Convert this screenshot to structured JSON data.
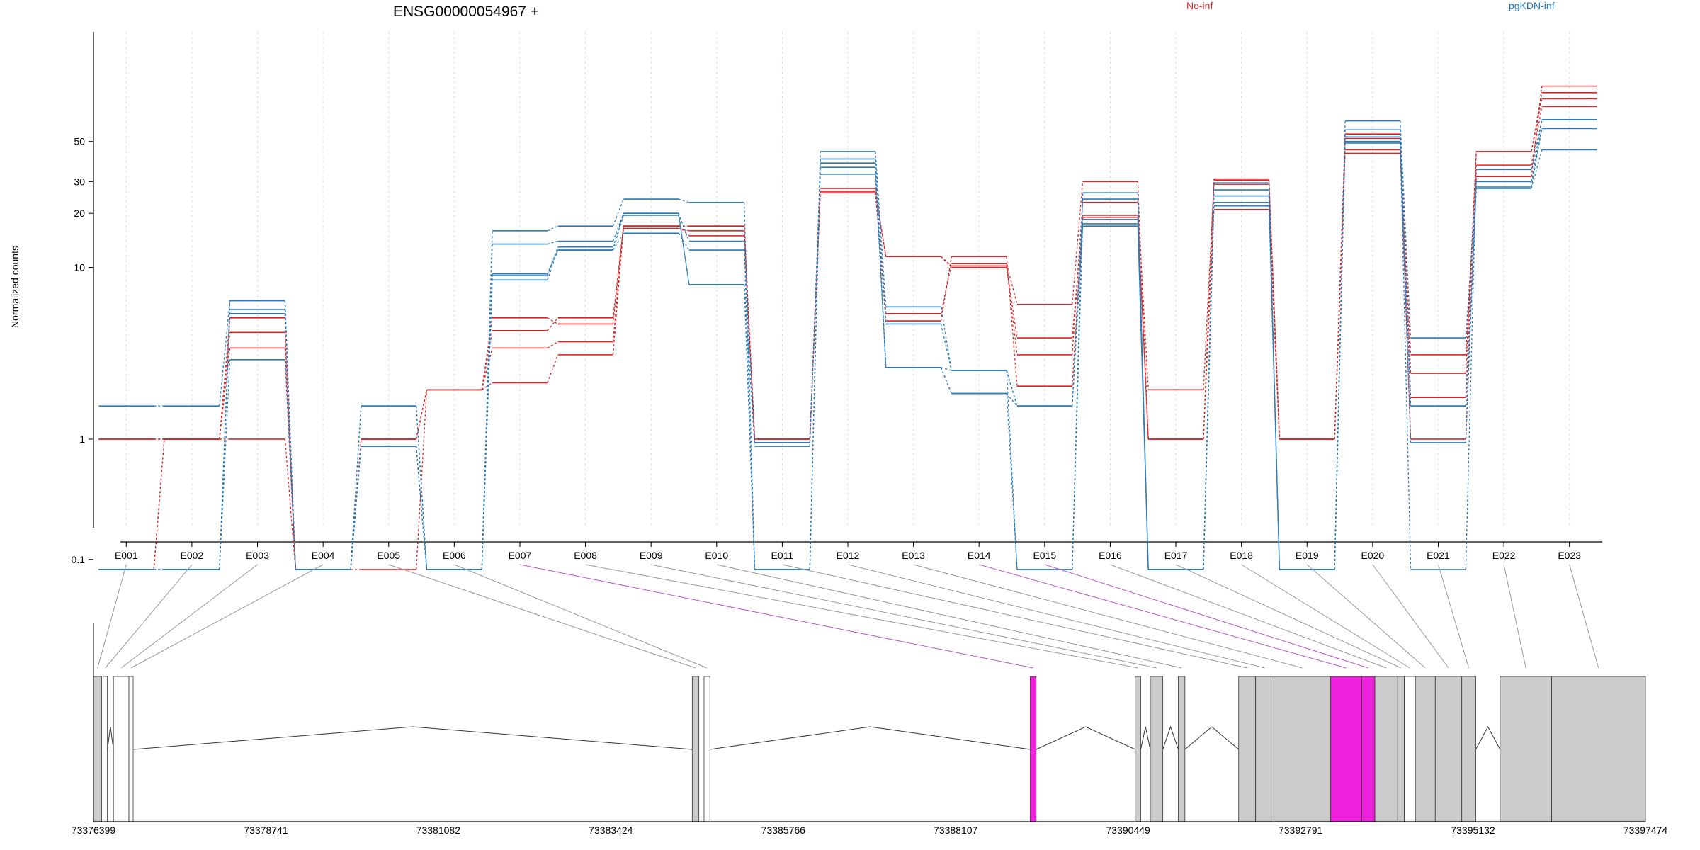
{
  "chart_data": {
    "type": "line",
    "title": "ENSG00000054967 +",
    "ylabel": "Normalized counts",
    "yscale": "log",
    "y_ticks": [
      "0.1",
      "1",
      "10",
      "20",
      "30",
      "50"
    ],
    "grid": "vertical dotted",
    "legend": [
      {
        "label": "No-inf",
        "color": "#d62728"
      },
      {
        "label": "pgKDN-inf",
        "color": "#2c7bb6"
      }
    ],
    "legend_placement": "top-right",
    "categories": [
      "E001",
      "E002",
      "E003",
      "E004",
      "E005",
      "E006",
      "E007",
      "E008",
      "E009",
      "E010",
      "E011",
      "E012",
      "E013",
      "E014",
      "E015",
      "E016",
      "E017",
      "E018",
      "E019",
      "E020",
      "E021",
      "E022",
      "E023"
    ],
    "series": [
      {
        "group": "No-inf",
        "values": [
          1,
          1,
          1,
          0.07,
          0.07,
          2,
          2.2,
          3.2,
          17,
          17,
          1,
          26,
          11.5,
          10.2,
          3.2,
          23,
          2,
          29,
          1,
          43,
          1,
          37,
          78
        ]
      },
      {
        "group": "No-inf",
        "values": [
          1,
          1,
          3.5,
          0.07,
          1,
          2,
          3.5,
          3.8,
          16.5,
          16,
          1,
          26.5,
          11.5,
          10,
          4,
          19,
          1,
          31,
          1,
          45,
          2.5,
          44,
          86
        ]
      },
      {
        "group": "No-inf",
        "values": [
          0.07,
          1,
          4.3,
          0.07,
          1,
          2,
          4.4,
          5.2,
          17,
          15,
          1,
          27.5,
          5,
          11.5,
          2.1,
          19.5,
          1,
          30.5,
          1,
          52,
          1.8,
          44,
          93
        ]
      },
      {
        "group": "No-inf",
        "values": [
          0.07,
          1,
          5.2,
          0.07,
          1,
          2,
          5.2,
          4.8,
          17,
          17,
          0.95,
          26,
          5.5,
          10.5,
          6.2,
          30,
          1,
          21,
          1,
          55,
          3.2,
          32,
          101
        ]
      },
      {
        "group": "pgKDN-inf",
        "values": [
          1.6,
          1.6,
          6.5,
          0.07,
          1.6,
          0.07,
          16,
          17,
          24,
          23,
          0.07,
          44,
          6,
          2.6,
          1.6,
          24,
          0.07,
          27,
          0.07,
          65,
          4,
          30,
          66
        ]
      },
      {
        "group": "pgKDN-inf",
        "values": [
          0.07,
          0.07,
          6.5,
          0.07,
          0.9,
          0.07,
          13.5,
          14,
          20,
          14,
          0.07,
          40,
          4.8,
          2.6,
          0.07,
          26,
          0.07,
          29.5,
          0.07,
          53,
          0.07,
          35,
          66
        ]
      },
      {
        "group": "pgKDN-inf",
        "values": [
          0.07,
          0.07,
          5.5,
          0.07,
          0.9,
          0.07,
          9,
          13,
          20,
          8,
          0.9,
          36,
          2.7,
          1.9,
          1.6,
          17,
          0.07,
          22,
          0.07,
          49,
          0.95,
          30,
          59
        ]
      },
      {
        "group": "pgKDN-inf",
        "values": [
          0.07,
          0.07,
          3,
          0.07,
          0.9,
          0.07,
          9.2,
          12.5,
          15.5,
          12.5,
          0.95,
          33,
          2.7,
          1.9,
          0.07,
          17.5,
          0.07,
          25,
          0.07,
          58,
          1.6,
          27.5,
          45
        ]
      },
      {
        "group": "pgKDN-inf",
        "values": [
          0.07,
          0.07,
          5.8,
          0.07,
          1.6,
          0.07,
          8.5,
          12.5,
          19.5,
          8,
          0.07,
          38,
          2.7,
          2.6,
          1.6,
          18.5,
          0.07,
          23,
          0.07,
          50,
          1.6,
          28,
          59
        ]
      }
    ],
    "genomic_axis_ticks": [
      "73376399",
      "73378741",
      "73381082",
      "73383424",
      "73385766",
      "73388107",
      "73390449",
      "73392791",
      "73395132",
      "73397474"
    ],
    "genomic_range": [
      73376399,
      73397474
    ],
    "exon_colors": {
      "normal": "#cccccc",
      "highlighted": "#ee22dd",
      "untested": "#ffffff"
    },
    "exons": [
      {
        "id": "E001",
        "start": 73376399,
        "end": 73376510,
        "state": "normal"
      },
      {
        "id": "E002",
        "start": 73376530,
        "end": 73376560,
        "state": "untested"
      },
      {
        "id": "E003",
        "start": 73376670,
        "end": 73376880,
        "state": "untested"
      },
      {
        "id": "E004",
        "start": 73376880,
        "end": 73376885,
        "state": "untested"
      },
      {
        "id": "E005",
        "start": 73384530,
        "end": 73384620,
        "state": "normal"
      },
      {
        "id": "E006",
        "start": 73384690,
        "end": 73384770,
        "state": "untested"
      },
      {
        "id": "E007",
        "start": 73389120,
        "end": 73389200,
        "state": "highlighted"
      },
      {
        "id": "E008",
        "start": 73390545,
        "end": 73390620,
        "state": "normal"
      },
      {
        "id": "E009",
        "start": 73390750,
        "end": 73390920,
        "state": "normal"
      },
      {
        "id": "E010",
        "start": 73391130,
        "end": 73391220,
        "state": "normal"
      },
      {
        "id": "E011",
        "start": 73391950,
        "end": 73392180,
        "state": "normal"
      },
      {
        "id": "E012",
        "start": 73392180,
        "end": 73392430,
        "state": "normal"
      },
      {
        "id": "E013",
        "start": 73392430,
        "end": 73393200,
        "state": "normal"
      },
      {
        "id": "E014",
        "start": 73393200,
        "end": 73393620,
        "state": "highlighted"
      },
      {
        "id": "E015",
        "start": 73393620,
        "end": 73393800,
        "state": "highlighted"
      },
      {
        "id": "E016",
        "start": 73393800,
        "end": 73394110,
        "state": "normal"
      },
      {
        "id": "E017",
        "start": 73394110,
        "end": 73394200,
        "state": "normal"
      },
      {
        "id": "E018",
        "start": 73394200,
        "end": 73394350,
        "state": "untested"
      },
      {
        "id": "E019",
        "start": 73394350,
        "end": 73394620,
        "state": "normal"
      },
      {
        "id": "E020",
        "start": 73394620,
        "end": 73394980,
        "state": "normal"
      },
      {
        "id": "E021",
        "start": 73394980,
        "end": 73395170,
        "state": "normal"
      },
      {
        "id": "E022",
        "start": 73395500,
        "end": 73396200,
        "state": "normal"
      },
      {
        "id": "E023",
        "start": 73396200,
        "end": 73397474,
        "state": "normal"
      }
    ]
  }
}
